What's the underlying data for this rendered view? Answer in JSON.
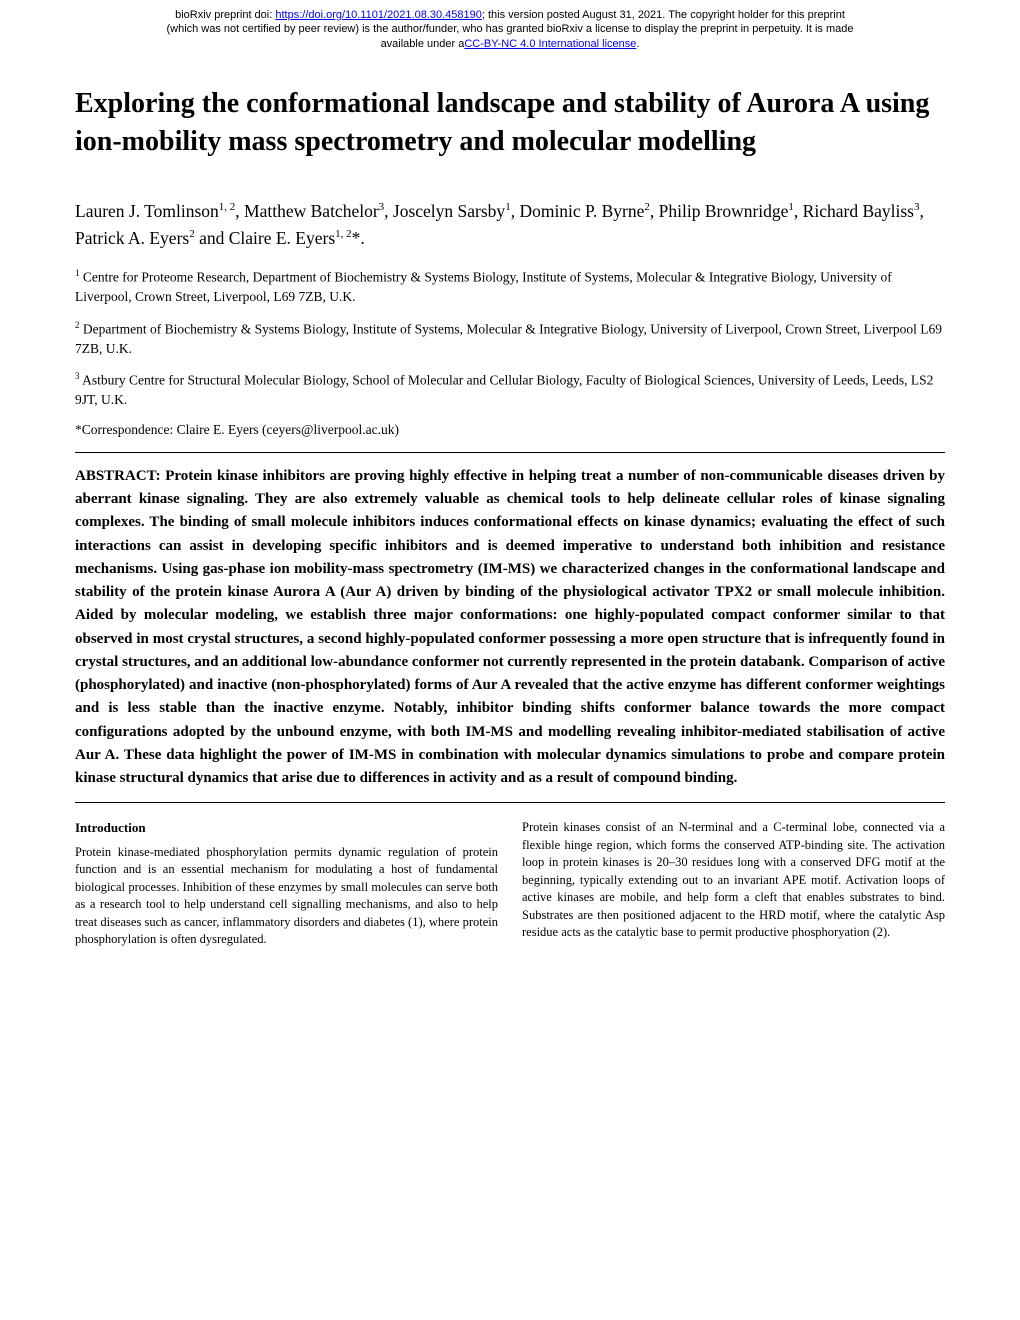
{
  "preprint": {
    "line1_prefix": "bioRxiv preprint doi: ",
    "doi_url": "https://doi.org/10.1101/2021.08.30.458190",
    "line1_suffix": "; this version posted August 31, 2021. The copyright holder for this preprint",
    "line2": "(which was not certified by peer review) is the author/funder, who has granted bioRxiv a license to display the preprint in perpetuity. It is made",
    "line3_prefix": "available under a",
    "license_text": "CC-BY-NC 4.0 International license",
    "line3_suffix": "."
  },
  "title": "Exploring the conformational landscape and stability of Aurora A using ion-mobility mass spectrometry and molecular modelling",
  "authors_html": "Lauren J. Tomlinson<sup>1, 2</sup>, Matthew Batchelor<sup>3</sup>, Joscelyn Sarsby<sup>1</sup>, Dominic P. Byrne<sup>2</sup>, Philip Brownridge<sup>1</sup>, Richard Bayliss<sup>3</sup>, Patrick A. Eyers<sup>2</sup> and Claire E. Eyers<sup>1, 2</sup>*.",
  "affiliations": [
    {
      "sup": "1",
      "text": " Centre for Proteome Research, Department of Biochemistry & Systems Biology, Institute of Systems, Molecular & Integrative Biology, University of Liverpool, Crown Street, Liverpool, L69 7ZB, U.K."
    },
    {
      "sup": "2",
      "text": " Department of Biochemistry & Systems Biology, Institute of Systems, Molecular & Integrative Biology, University of Liverpool, Crown Street, Liverpool L69 7ZB, U.K."
    },
    {
      "sup": "3",
      "text": " Astbury Centre for Structural Molecular Biology, School of Molecular and Cellular Biology, Faculty of Biological Sciences, University of Leeds, Leeds, LS2 9JT, U.K."
    }
  ],
  "correspondence": "*Correspondence: Claire E. Eyers (ceyers@liverpool.ac.uk)",
  "abstract_label": "ABSTRACT: ",
  "abstract_body": "Protein kinase inhibitors are proving highly effective in helping treat a number of non-communicable diseases driven by aberrant kinase signaling. They are also extremely valuable as chemical tools to help delineate cellular roles of kinase signaling complexes. The binding of small molecule inhibitors induces conformational effects on kinase dynamics; evaluating the effect of such interactions can assist in developing specific inhibitors and is deemed imperative to understand both inhibition and resistance mechanisms. Using gas-phase ion mobility-mass spectrometry (IM-MS) we characterized changes in the conformational landscape and stability of the protein kinase Aurora A (Aur A) driven by binding of the physiological activator TPX2 or small molecule inhibition. Aided by molecular modeling, we establish three major conformations: one highly-populated compact conformer similar to that observed in most crystal structures, a second highly-populated conformer possessing a more open structure that is infrequently found in crystal structures, and an additional low-abundance conformer not currently represented in the protein databank. Comparison of active (phosphorylated) and inactive (non-phosphorylated) forms of Aur A revealed that the active enzyme has different conformer weightings and is less stable than the inactive enzyme. Notably, inhibitor binding shifts conformer balance towards the more compact configurations adopted by the unbound enzyme, with both IM-MS and modelling revealing inhibitor-mediated stabilisation of active Aur A. These data highlight the power of IM-MS in combination with molecular dynamics simulations to probe and compare protein kinase structural dynamics that arise due to differences in activity and as a result of compound binding.",
  "body": {
    "left": {
      "heading": "Introduction",
      "para": "Protein kinase-mediated phosphorylation permits dynamic regulation of protein function and is an essential mechanism for modulating a host of fundamental biological processes. Inhibition of these enzymes by small molecules can serve both as a research tool to help understand cell signalling mechanisms, and also to help treat diseases such as cancer, inflammatory disorders and diabetes (1), where protein phosphorylation is often dysregulated."
    },
    "right": {
      "para": "Protein kinases consist of an N-terminal and a C-terminal lobe, connected via a flexible hinge region, which forms the conserved ATP-binding site. The activation loop in protein kinases is 20–30 residues long with a conserved DFG motif at the beginning, typically extending out to an invariant APE motif. Activation loops of active kinases are mobile, and help form a cleft that enables substrates to bind. Substrates are then positioned adjacent to the HRD motif, where the catalytic Asp residue acts as the catalytic base to permit productive phosphoryation (2)."
    }
  }
}
